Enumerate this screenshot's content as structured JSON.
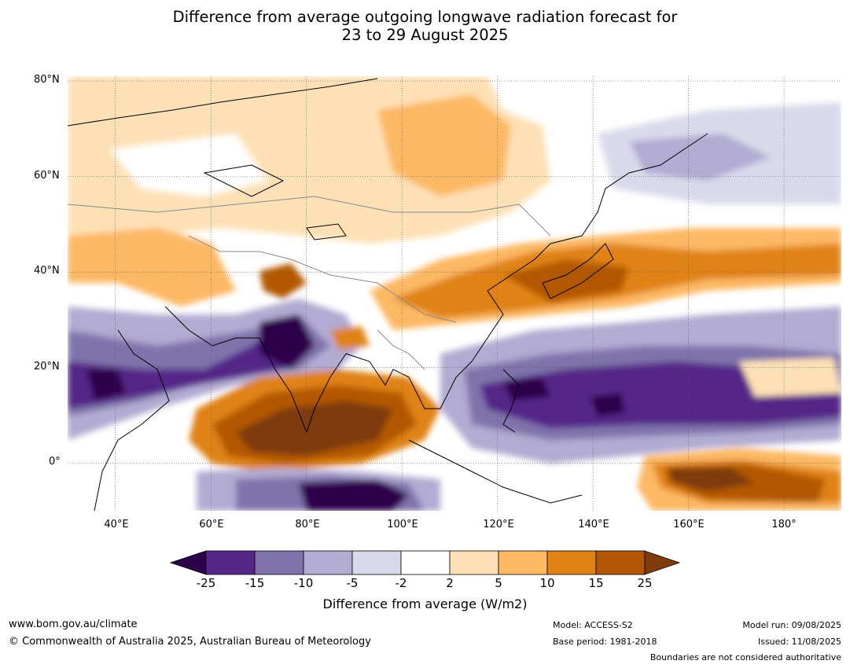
{
  "title": {
    "line1": "Difference from average outgoing longwave radiation forecast for",
    "line2": "23 to 29 August 2025"
  },
  "map": {
    "lat_ticks": [
      "80°N",
      "60°N",
      "40°N",
      "20°N",
      "0°"
    ],
    "lon_ticks": [
      "40°E",
      "60°E",
      "80°E",
      "100°E",
      "120°E",
      "140°E",
      "160°E",
      "180°"
    ],
    "lat_values": [
      80,
      60,
      40,
      20,
      0
    ],
    "lon_values": [
      40,
      60,
      80,
      100,
      120,
      140,
      160,
      180
    ],
    "extent": {
      "lon_min": 30,
      "lon_max": 192,
      "lat_min": -10,
      "lat_max": 81
    }
  },
  "colorbar": {
    "ticks": [
      "-25",
      "-15",
      "-10",
      "-5",
      "-2",
      "2",
      "5",
      "10",
      "15",
      "25"
    ],
    "colors": {
      "below": "#2d004b",
      "bins": [
        "#542788",
        "#8073ac",
        "#b2abd2",
        "#d8daeb",
        "#ffffff",
        "#fee0b6",
        "#fdb863",
        "#e08214",
        "#b35806"
      ],
      "above": "#7f3b08"
    },
    "label": "Difference from average (W/m2)"
  },
  "footer": {
    "website": "www.bom.gov.au/climate",
    "copyright": "© Commonwealth of Australia 2025, Australian Bureau of Meteorology",
    "model": "Model: ACCESS-S2",
    "base_period": "Base period: 1981-2018",
    "model_run": "Model run: 09/08/2025",
    "issued": "Issued: 11/08/2025",
    "disclaimer": "Boundaries are not considered authoritative"
  }
}
